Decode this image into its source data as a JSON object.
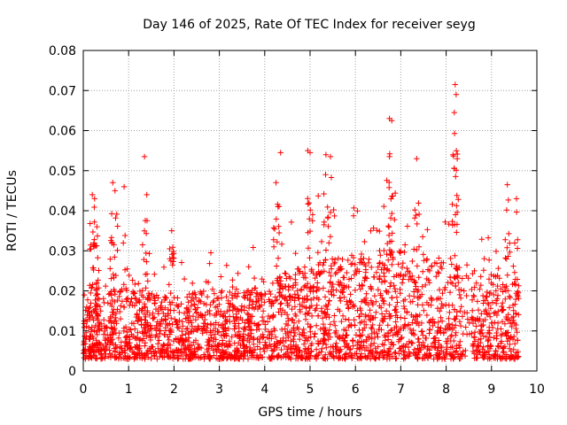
{
  "chart_data": {
    "type": "scatter",
    "title": "Day 146 of 2025, Rate Of TEC Index for receiver seyg",
    "xlabel": "GPS time / hours",
    "ylabel": "ROTI / TECUs",
    "xlim": [
      0,
      10
    ],
    "ylim": [
      0,
      0.08
    ],
    "xticks": [
      "0",
      "1",
      "2",
      "3",
      "4",
      "5",
      "6",
      "7",
      "8",
      "9",
      "10"
    ],
    "yticks": [
      "0",
      "0.01",
      "0.02",
      "0.03",
      "0.04",
      "0.05",
      "0.06",
      "0.07",
      "0.08"
    ],
    "grid": true,
    "marker": "+",
    "color": "#ff0000",
    "data_extent_hours": [
      0,
      9.6
    ],
    "baseline_band": [
      0.003,
      0.02
    ],
    "series": [
      {
        "name": "ROTI",
        "notable_points": [
          {
            "x": 0.2,
            "y": 0.044
          },
          {
            "x": 0.25,
            "y": 0.043
          },
          {
            "x": 0.3,
            "y": 0.036
          },
          {
            "x": 0.65,
            "y": 0.047
          },
          {
            "x": 0.7,
            "y": 0.045
          },
          {
            "x": 0.9,
            "y": 0.046
          },
          {
            "x": 1.35,
            "y": 0.0535
          },
          {
            "x": 1.4,
            "y": 0.044
          },
          {
            "x": 1.95,
            "y": 0.035
          },
          {
            "x": 4.35,
            "y": 0.0545
          },
          {
            "x": 4.25,
            "y": 0.047
          },
          {
            "x": 4.95,
            "y": 0.055
          },
          {
            "x": 5.0,
            "y": 0.0545
          },
          {
            "x": 5.35,
            "y": 0.054
          },
          {
            "x": 5.45,
            "y": 0.0535
          },
          {
            "x": 6.75,
            "y": 0.063
          },
          {
            "x": 6.8,
            "y": 0.0625
          },
          {
            "x": 6.75,
            "y": 0.0535
          },
          {
            "x": 7.35,
            "y": 0.053
          },
          {
            "x": 8.2,
            "y": 0.0715
          },
          {
            "x": 8.22,
            "y": 0.069
          },
          {
            "x": 8.18,
            "y": 0.0645
          },
          {
            "x": 8.15,
            "y": 0.054
          },
          {
            "x": 9.35,
            "y": 0.0465
          },
          {
            "x": 9.55,
            "y": 0.043
          }
        ]
      }
    ]
  }
}
